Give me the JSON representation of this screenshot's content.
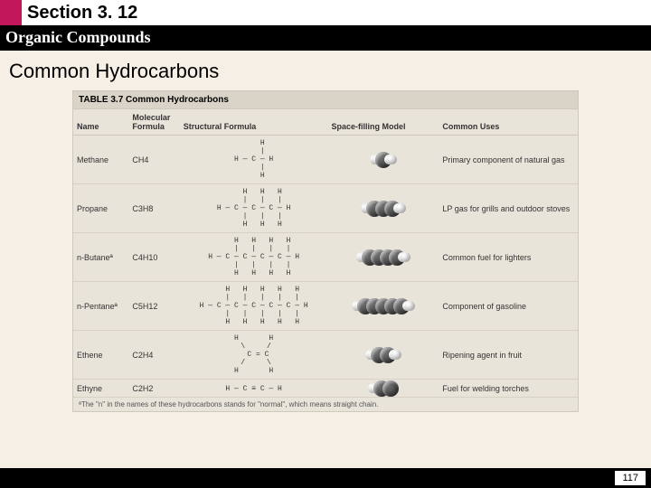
{
  "header": {
    "section_label": "Section 3. 12",
    "subtitle": "Organic Compounds"
  },
  "main": {
    "title": "Common Hydrocarbons"
  },
  "table": {
    "caption": "TABLE 3.7  Common Hydrocarbons",
    "columns": [
      "Name",
      "Molecular Formula",
      "Structural Formula",
      "Space-filling Model",
      "Common Uses"
    ],
    "rows": [
      {
        "name": "Methane",
        "formula": "CH4",
        "struct": "    H\n    |\nH — C — H\n    |\n    H",
        "model": {
          "carbons": 1,
          "hydrogens": 4
        },
        "uses": "Primary component of natural gas"
      },
      {
        "name": "Propane",
        "formula": "C3H8",
        "struct": "    H   H   H\n    |   |   |\nH — C — C — C — H\n    |   |   |\n    H   H   H",
        "model": {
          "carbons": 3,
          "hydrogens": 8
        },
        "uses": "LP gas for grills and outdoor stoves"
      },
      {
        "name": "n-Butaneª",
        "formula": "C4H10",
        "struct": "    H   H   H   H\n    |   |   |   |\nH — C — C — C — C — H\n    |   |   |   |\n    H   H   H   H",
        "model": {
          "carbons": 4,
          "hydrogens": 10
        },
        "uses": "Common fuel for lighters"
      },
      {
        "name": "n-Pentaneª",
        "formula": "C5H12",
        "struct": "    H   H   H   H   H\n    |   |   |   |   |\nH — C — C — C — C — C — H\n    |   |   |   |   |\n    H   H   H   H   H",
        "model": {
          "carbons": 5,
          "hydrogens": 12
        },
        "uses": "Component of gasoline"
      },
      {
        "name": "Ethene",
        "formula": "C2H4",
        "struct": "H       H\n \\     /\n  C = C\n /     \\\nH       H",
        "model": {
          "carbons": 2,
          "hydrogens": 4
        },
        "uses": "Ripening agent in fruit"
      },
      {
        "name": "Ethyne",
        "formula": "C2H2",
        "struct": "H — C ≡ C — H",
        "model": {
          "carbons": 2,
          "hydrogens": 2
        },
        "uses": "Fuel for welding torches"
      }
    ],
    "footnote": "ªThe \"n\" in the names of these hydrocarbons stands for \"normal\", which means straight chain."
  },
  "footer": {
    "page": "117"
  },
  "colors": {
    "magenta": "#c2185b",
    "black": "#000000",
    "page_bg": "#f5efe5",
    "table_bg": "#e9e4da",
    "carbon": "#333333",
    "hydrogen": "#eeeeee"
  }
}
